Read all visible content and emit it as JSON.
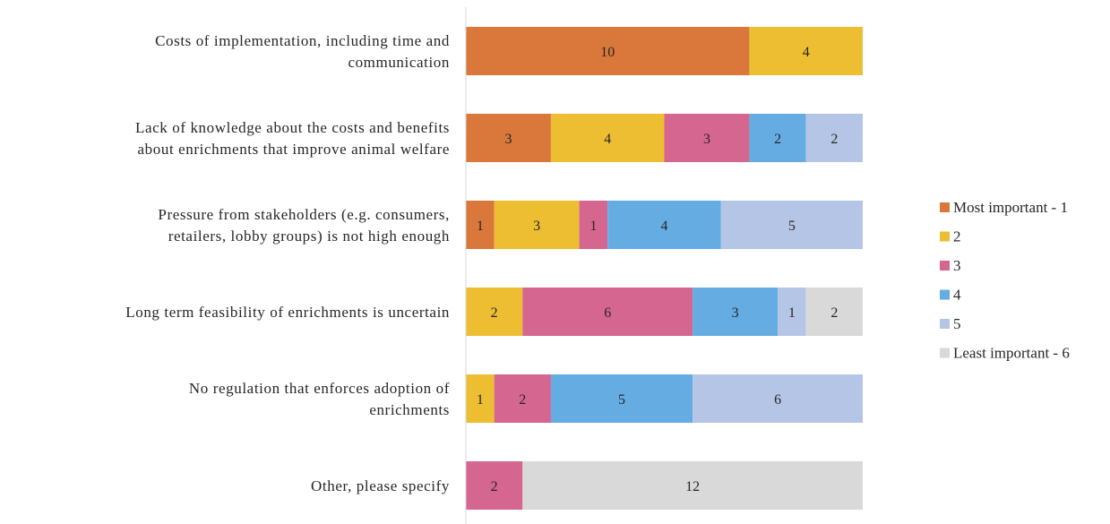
{
  "chart_data": {
    "type": "bar",
    "orientation": "horizontal",
    "stacked": true,
    "categories": [
      [
        "Costs of implementation, including time and",
        "communication"
      ],
      [
        "Lack of knowledge about the costs and benefits",
        "about enrichments that improve animal welfare"
      ],
      [
        "Pressure from stakeholders (e.g. consumers,",
        "retailers, lobby groups) is not high enough"
      ],
      [
        "Long term feasibility of enrichments is uncertain"
      ],
      [
        "No regulation that enforces adoption of",
        "enrichments"
      ],
      [
        "Other, please specify"
      ]
    ],
    "series": [
      {
        "name": "Most important - 1",
        "color": "#D9783A",
        "values": [
          10,
          3,
          1,
          0,
          0,
          0
        ]
      },
      {
        "name": "2",
        "color": "#EDBE32",
        "values": [
          4,
          4,
          3,
          2,
          1,
          0
        ]
      },
      {
        "name": "3",
        "color": "#D46690",
        "values": [
          0,
          3,
          1,
          6,
          2,
          2
        ]
      },
      {
        "name": "4",
        "color": "#65ACE2",
        "values": [
          0,
          2,
          4,
          3,
          5,
          0
        ]
      },
      {
        "name": "5",
        "color": "#B5C5E6",
        "values": [
          0,
          2,
          5,
          1,
          6,
          0
        ]
      },
      {
        "name": "Least important - 6",
        "color": "#D9D9D9",
        "values": [
          0,
          0,
          0,
          2,
          0,
          12
        ]
      }
    ],
    "xlim": [
      0,
      14
    ],
    "grid": false,
    "legend_position": "right",
    "axis_line_color": "#D9D9D9"
  }
}
